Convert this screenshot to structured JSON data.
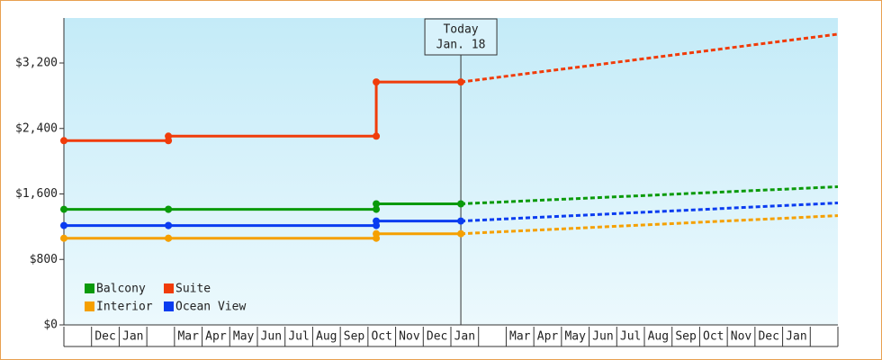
{
  "chart_data": {
    "type": "line",
    "categories": [
      null,
      "Dec",
      "Jan",
      null,
      "Mar",
      "Apr",
      "May",
      "Jun",
      "Jul",
      "Aug",
      "Sep",
      "Oct",
      "Nov",
      "Dec",
      "Jan",
      null,
      "Mar",
      "Apr",
      "May",
      "Jun",
      "Jul",
      "Aug",
      "Sep",
      "Oct",
      "Nov",
      "Dec",
      "Jan",
      null
    ],
    "xlim": [
      0,
      28
    ],
    "x": [
      0,
      3.78,
      3.78,
      11.3,
      11.3,
      14.36
    ],
    "forecast_x": [
      14.36,
      28
    ],
    "ylim": [
      0,
      3750
    ],
    "yticks": [
      {
        "value": 0,
        "label": "$0"
      },
      {
        "value": 800,
        "label": "$800"
      },
      {
        "value": 1600,
        "label": "$1,600"
      },
      {
        "value": 2400,
        "label": "$2,400"
      },
      {
        "value": 3200,
        "label": "$3,200"
      }
    ],
    "today": {
      "x": 14.36,
      "label": "Today",
      "date": "Jan. 18"
    },
    "series": [
      {
        "name": "Balcony",
        "color": "#0a9a0a",
        "values": [
          1412,
          1412,
          1412,
          1412,
          1479,
          1479
        ],
        "forecast_values": [
          1479,
          1688
        ]
      },
      {
        "name": "Suite",
        "color": "#f03c0a",
        "values": [
          2251,
          2251,
          2306,
          2306,
          2968,
          2968
        ],
        "forecast_values": [
          2968,
          3553
        ]
      },
      {
        "name": "Interior",
        "color": "#f5a000",
        "values": [
          1059,
          1059,
          1059,
          1059,
          1114,
          1114
        ],
        "forecast_values": [
          1114,
          1335
        ]
      },
      {
        "name": "Ocean View",
        "color": "#0a3cf0",
        "values": [
          1214,
          1214,
          1214,
          1214,
          1269,
          1269
        ],
        "forecast_values": [
          1269,
          1490
        ]
      }
    ]
  }
}
